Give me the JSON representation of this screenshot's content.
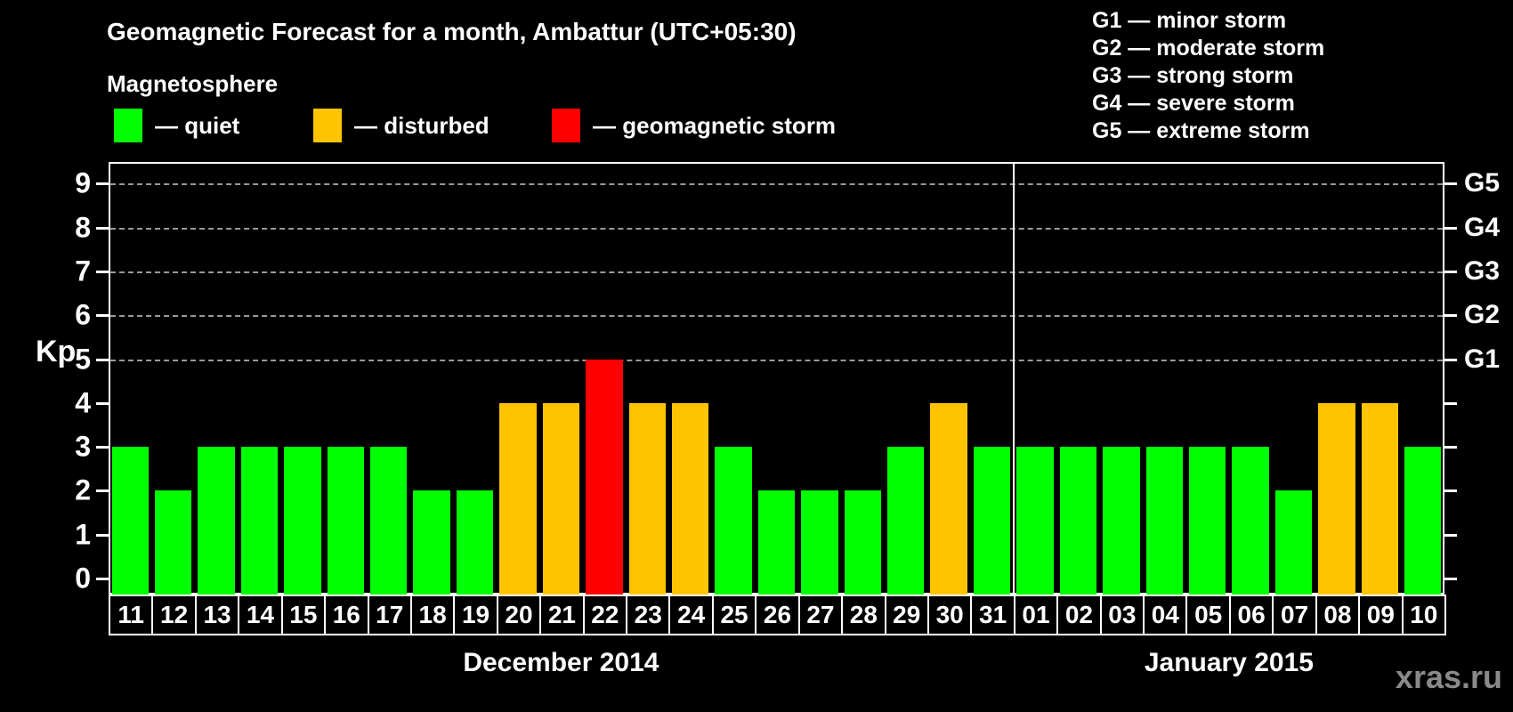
{
  "header": {
    "title": "Geomagnetic Forecast for a month, Ambattur (UTC+05:30)",
    "subtitle": "Magnetosphere"
  },
  "legend": {
    "items": [
      {
        "name": "quiet",
        "label": "— quiet",
        "color": "#00FF00"
      },
      {
        "name": "disturbed",
        "label": "— disturbed",
        "color": "#FFC400"
      },
      {
        "name": "storm",
        "label": "— geomagnetic storm",
        "color": "#FF0000"
      }
    ]
  },
  "storm_scale": {
    "items": [
      "G1 — minor storm",
      "G2 — moderate storm",
      "G3 — strong storm",
      "G4 — severe storm",
      "G5 — extreme storm"
    ]
  },
  "watermark": "xras.ru",
  "chart_data": {
    "type": "bar",
    "title": "Geomagnetic Forecast for a month, Ambattur (UTC+05:30)",
    "ylabel": "Kp",
    "ylim": [
      0,
      9.5
    ],
    "yticks": [
      0,
      1,
      2,
      3,
      4,
      5,
      6,
      7,
      8,
      9
    ],
    "grid": "horizontal dashed at Kp 5-9",
    "grid_levels": [
      5,
      6,
      7,
      8,
      9
    ],
    "right_axis_labels": [
      {
        "value": 5,
        "label": "G1"
      },
      {
        "value": 6,
        "label": "G2"
      },
      {
        "value": 7,
        "label": "G3"
      },
      {
        "value": 8,
        "label": "G4"
      },
      {
        "value": 9,
        "label": "G5"
      }
    ],
    "categories": [
      "11",
      "12",
      "13",
      "14",
      "15",
      "16",
      "17",
      "18",
      "19",
      "20",
      "21",
      "22",
      "23",
      "24",
      "25",
      "26",
      "27",
      "28",
      "29",
      "30",
      "31",
      "01",
      "02",
      "03",
      "04",
      "05",
      "06",
      "07",
      "08",
      "09",
      "10"
    ],
    "values": [
      3,
      2,
      3,
      3,
      3,
      3,
      3,
      2,
      2,
      4,
      4,
      5,
      4,
      4,
      3,
      2,
      2,
      2,
      3,
      4,
      3,
      3,
      3,
      3,
      3,
      3,
      3,
      2,
      4,
      4,
      3
    ],
    "statuses": [
      "quiet",
      "quiet",
      "quiet",
      "quiet",
      "quiet",
      "quiet",
      "quiet",
      "quiet",
      "quiet",
      "disturbed",
      "disturbed",
      "storm",
      "disturbed",
      "disturbed",
      "quiet",
      "quiet",
      "quiet",
      "quiet",
      "quiet",
      "disturbed",
      "quiet",
      "quiet",
      "quiet",
      "quiet",
      "quiet",
      "quiet",
      "quiet",
      "quiet",
      "disturbed",
      "disturbed",
      "quiet"
    ],
    "status_colors": {
      "quiet": "#00FF00",
      "disturbed": "#FFC400",
      "storm": "#FF0000"
    },
    "months": [
      {
        "label": "December 2014",
        "days": 21
      },
      {
        "label": "January 2015",
        "days": 10
      }
    ],
    "legend_position": "top-left"
  }
}
